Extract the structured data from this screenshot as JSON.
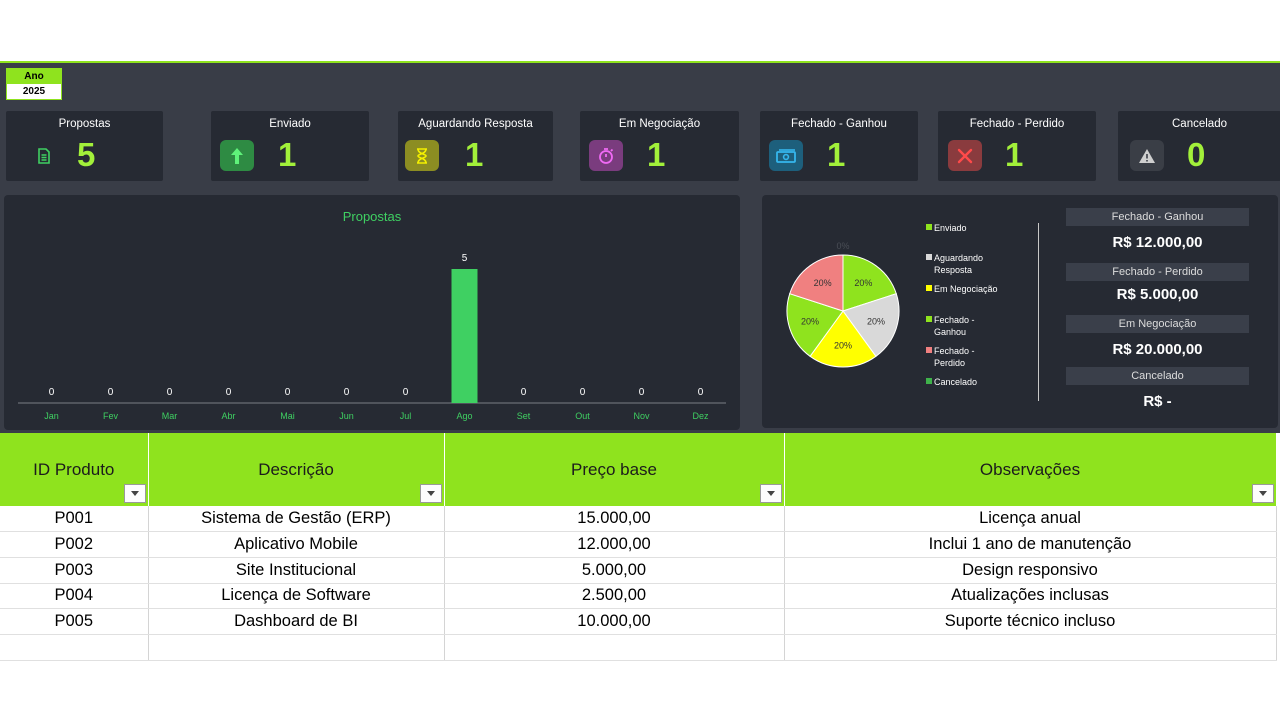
{
  "year": {
    "label": "Ano",
    "value": "2025"
  },
  "kpis": [
    {
      "label": "Propostas",
      "value": "5",
      "icon": "document-icon",
      "icon_bg": "",
      "icon_color": "#3fd062"
    },
    {
      "label": "Enviado",
      "value": "1",
      "icon": "arrow-up-icon",
      "icon_bg": "#2e8b43",
      "icon_color": "#5ff27a"
    },
    {
      "label": "Aguardando Resposta",
      "value": "1",
      "icon": "hourglass-icon",
      "icon_bg": "#8c8d22",
      "icon_color": "#f4f000"
    },
    {
      "label": "Em Negociação",
      "value": "1",
      "icon": "stopwatch-icon",
      "icon_bg": "#7a3c7e",
      "icon_color": "#f06af5"
    },
    {
      "label": "Fechado - Ganhou",
      "value": "1",
      "icon": "money-icon",
      "icon_bg": "#1d5f7c",
      "icon_color": "#35b7ee"
    },
    {
      "label": "Fechado - Perdido",
      "value": "1",
      "icon": "x-icon",
      "icon_bg": "#8a3b3e",
      "icon_color": "#ff4a4a"
    },
    {
      "label": "Cancelado",
      "value": "0",
      "icon": "warning-icon",
      "icon_bg": "#3a3e46",
      "icon_color": "#cfcfcf"
    }
  ],
  "chart_data": [
    {
      "type": "bar",
      "title": "Propostas",
      "categories": [
        "Jan",
        "Fev",
        "Mar",
        "Abr",
        "Mai",
        "Jun",
        "Jul",
        "Ago",
        "Set",
        "Out",
        "Nov",
        "Dez"
      ],
      "values": [
        0,
        0,
        0,
        0,
        0,
        0,
        0,
        5,
        0,
        0,
        0,
        0
      ],
      "ylim": [
        0,
        5
      ],
      "color": "#3fd062"
    },
    {
      "type": "pie",
      "slices": [
        {
          "name": "Enviado",
          "value": 20,
          "label": "20%",
          "color": "#8fe31e"
        },
        {
          "name": "Aguardando Resposta",
          "value": 20,
          "label": "20%",
          "color": "#d9d9d9"
        },
        {
          "name": "Em Negociação",
          "value": 20,
          "label": "20%",
          "color": "#ffff00"
        },
        {
          "name": "Fechado - Ganhou",
          "value": 20,
          "label": "20%",
          "color": "#8fe31e"
        },
        {
          "name": "Fechado - Perdido",
          "value": 20,
          "label": "20%",
          "color": "#f08080"
        },
        {
          "name": "Cancelado",
          "value": 0,
          "label": "0%",
          "color": "#3fb24b"
        }
      ]
    }
  ],
  "legend": [
    {
      "lines": [
        "Enviado"
      ],
      "color": "#8fe31e"
    },
    {
      "lines": [
        "Aguardando",
        "Resposta"
      ],
      "color": "#d9d9d9"
    },
    {
      "lines": [
        "Em Negociação"
      ],
      "color": "#ffff00"
    },
    {
      "lines": [
        "Fechado -",
        "Ganhou"
      ],
      "color": "#8fe31e"
    },
    {
      "lines": [
        "Fechado -",
        "Perdido"
      ],
      "color": "#f08080"
    },
    {
      "lines": [
        "Cancelado"
      ],
      "color": "#3fb24b"
    }
  ],
  "values_panel": [
    {
      "label": "Fechado - Ganhou",
      "value": "R$ 12.000,00"
    },
    {
      "label": "Fechado - Perdido",
      "value": "R$ 5.000,00"
    },
    {
      "label": "Em Negociação",
      "value": "R$ 20.000,00"
    },
    {
      "label": "Cancelado",
      "value": "R$ -"
    }
  ],
  "table": {
    "columns": [
      "ID Produto",
      "Descrição",
      "Preço base",
      "Observações"
    ],
    "rows": [
      [
        "P001",
        "Sistema de Gestão (ERP)",
        "15.000,00",
        "Licença anual"
      ],
      [
        "P002",
        "Aplicativo Mobile",
        "12.000,00",
        "Inclui 1 ano de manutenção"
      ],
      [
        "P003",
        "Site Institucional",
        "5.000,00",
        "Design responsivo"
      ],
      [
        "P004",
        "Licença de Software",
        "2.500,00",
        "Atualizações inclusas"
      ],
      [
        "P005",
        "Dashboard de BI",
        "10.000,00",
        "Suporte técnico incluso"
      ],
      [
        "",
        "",
        "",
        ""
      ]
    ]
  }
}
